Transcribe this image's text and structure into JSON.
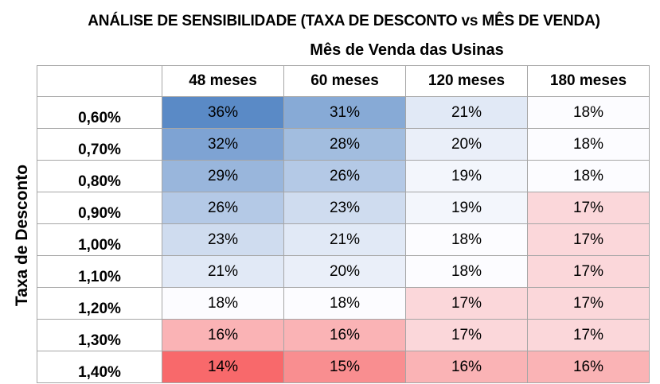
{
  "chart_data": {
    "type": "heatmap",
    "title": "ANÁLISE DE SENSIBILIDADE (TAXA DE DESCONTO vs MÊS DE VENDA)",
    "xlabel": "Mês de Venda das Usinas",
    "ylabel": "Taxa de Desconto",
    "columns": [
      "48 meses",
      "60 meses",
      "120 meses",
      "180 meses"
    ],
    "rows": [
      "0,60%",
      "0,70%",
      "0,80%",
      "0,90%",
      "1,00%",
      "1,10%",
      "1,20%",
      "1,30%",
      "1,40%"
    ],
    "values": [
      [
        "36%",
        "31%",
        "21%",
        "18%"
      ],
      [
        "32%",
        "28%",
        "20%",
        "18%"
      ],
      [
        "29%",
        "26%",
        "19%",
        "18%"
      ],
      [
        "26%",
        "23%",
        "19%",
        "17%"
      ],
      [
        "23%",
        "21%",
        "18%",
        "17%"
      ],
      [
        "21%",
        "20%",
        "18%",
        "17%"
      ],
      [
        "18%",
        "18%",
        "17%",
        "17%"
      ],
      [
        "16%",
        "16%",
        "17%",
        "17%"
      ],
      [
        "14%",
        "15%",
        "16%",
        "16%"
      ]
    ],
    "color_scale": {
      "low": "#f8696b",
      "mid": "#fcfcff",
      "high": "#5a8ac6"
    }
  }
}
